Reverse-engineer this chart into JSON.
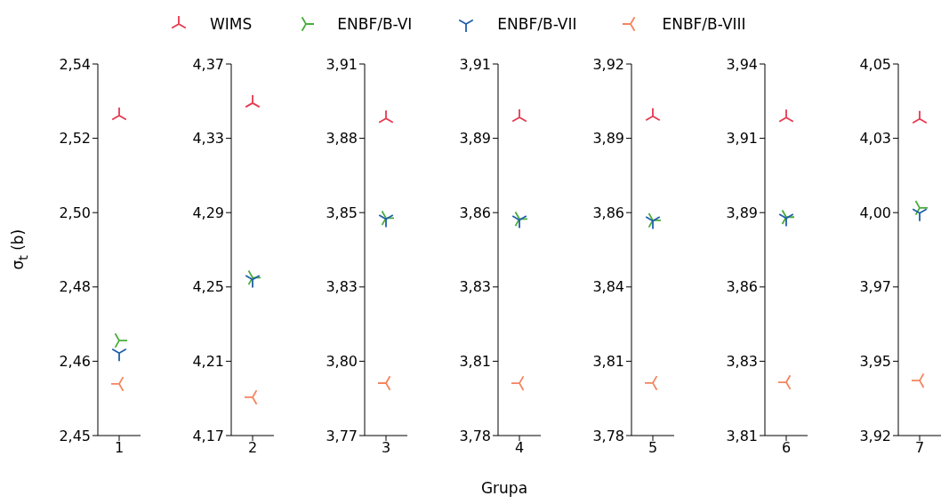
{
  "chart_data": [
    {
      "type": "scatter",
      "categories": [
        "1"
      ],
      "ylabel": "σ$_{t}$ (b)",
      "legend": "top",
      "grid": false,
      "ylim": [
        2.4455,
        2.5405
      ],
      "yticks": [
        {
          "value": 2.4455,
          "label": "2,45"
        },
        {
          "value": 2.4645,
          "label": "2,46"
        },
        {
          "value": 2.4835,
          "label": "2,48"
        },
        {
          "value": 2.5025,
          "label": "2,50"
        },
        {
          "value": 2.5215,
          "label": "2,52"
        },
        {
          "value": 2.5405,
          "label": "2,54"
        }
      ],
      "series": [
        {
          "name": "WIMS",
          "color": "#e8384f",
          "values": [
            2.5273
          ]
        },
        {
          "name": "ENBF/B-VI",
          "color": "#4aac3c",
          "values": [
            2.4698
          ]
        },
        {
          "name": "ENBF/B-VII",
          "color": "#2060a8",
          "values": [
            2.4666
          ]
        },
        {
          "name": "ENBF/B-VIII",
          "color": "#f4845f",
          "values": [
            2.4587
          ]
        }
      ]
    },
    {
      "type": "scatter",
      "categories": [
        "2"
      ],
      "grid": false,
      "ylim": [
        4.17,
        4.37
      ],
      "yticks": [
        {
          "value": 4.17,
          "label": "4,17"
        },
        {
          "value": 4.21,
          "label": "4,21"
        },
        {
          "value": 4.25,
          "label": "4,25"
        },
        {
          "value": 4.29,
          "label": "4,29"
        },
        {
          "value": 4.33,
          "label": "4,33"
        },
        {
          "value": 4.37,
          "label": "4,37"
        }
      ],
      "series": [
        {
          "color": "#e8384f",
          "values": [
            4.349
          ]
        },
        {
          "color": "#4aac3c",
          "values": [
            4.255
          ]
        },
        {
          "color": "#2060a8",
          "values": [
            4.254
          ]
        },
        {
          "color": "#f4845f",
          "values": [
            4.1906
          ]
        }
      ]
    },
    {
      "type": "scatter",
      "categories": [
        "3"
      ],
      "grid": false,
      "ylim": [
        3.772,
        3.908
      ],
      "yticks": [
        {
          "value": 3.772,
          "label": "3,77"
        },
        {
          "value": 3.7992,
          "label": "3,80"
        },
        {
          "value": 3.8264,
          "label": "3,83"
        },
        {
          "value": 3.8536,
          "label": "3,85"
        },
        {
          "value": 3.8808,
          "label": "3,88"
        },
        {
          "value": 3.908,
          "label": "3,91"
        }
      ],
      "series": [
        {
          "color": "#e8384f",
          "values": [
            3.8881
          ]
        },
        {
          "color": "#4aac3c",
          "values": [
            3.8516
          ]
        },
        {
          "color": "#2060a8",
          "values": [
            3.8512
          ]
        },
        {
          "color": "#f4845f",
          "values": [
            3.7912
          ]
        }
      ]
    },
    {
      "type": "scatter",
      "categories": [
        "4"
      ],
      "xlabel": "Grupa",
      "grid": false,
      "ylim": [
        3.779,
        3.914
      ],
      "yticks": [
        {
          "value": 3.779,
          "label": "3,78"
        },
        {
          "value": 3.806,
          "label": "3,81"
        },
        {
          "value": 3.833,
          "label": "3,83"
        },
        {
          "value": 3.86,
          "label": "3,86"
        },
        {
          "value": 3.887,
          "label": "3,89"
        },
        {
          "value": 3.914,
          "label": "3,91"
        }
      ],
      "series": [
        {
          "color": "#e8384f",
          "values": [
            3.8946
          ]
        },
        {
          "color": "#4aac3c",
          "values": [
            3.8577
          ]
        },
        {
          "color": "#2060a8",
          "values": [
            3.8573
          ]
        },
        {
          "color": "#f4845f",
          "values": [
            3.798
          ]
        }
      ]
    },
    {
      "type": "scatter",
      "categories": [
        "5"
      ],
      "grid": false,
      "ylim": [
        3.7795,
        3.9195
      ],
      "yticks": [
        {
          "value": 3.7795,
          "label": "3,78"
        },
        {
          "value": 3.8075,
          "label": "3,81"
        },
        {
          "value": 3.8355,
          "label": "3,84"
        },
        {
          "value": 3.8635,
          "label": "3,86"
        },
        {
          "value": 3.8915,
          "label": "3,89"
        },
        {
          "value": 3.9195,
          "label": "3,92"
        }
      ],
      "series": [
        {
          "color": "#e8384f",
          "values": [
            3.8998
          ]
        },
        {
          "color": "#4aac3c",
          "values": [
            3.8606
          ]
        },
        {
          "color": "#2060a8",
          "values": [
            3.8604
          ]
        },
        {
          "color": "#f4845f",
          "values": [
            3.7993
          ]
        }
      ]
    },
    {
      "type": "scatter",
      "categories": [
        "6"
      ],
      "grid": false,
      "ylim": [
        3.806,
        3.9385
      ],
      "yticks": [
        {
          "value": 3.806,
          "label": "3,81"
        },
        {
          "value": 3.8325,
          "label": "3,83"
        },
        {
          "value": 3.859,
          "label": "3,86"
        },
        {
          "value": 3.8855,
          "label": "3,89"
        },
        {
          "value": 3.912,
          "label": "3,91"
        },
        {
          "value": 3.9385,
          "label": "3,94"
        }
      ],
      "series": [
        {
          "color": "#e8384f",
          "values": [
            3.9194
          ]
        },
        {
          "color": "#4aac3c",
          "values": [
            3.8839
          ]
        },
        {
          "color": "#2060a8",
          "values": [
            3.8835
          ]
        },
        {
          "color": "#f4845f",
          "values": [
            3.825
          ]
        }
      ]
    },
    {
      "type": "scatter",
      "categories": [
        "7"
      ],
      "grid": false,
      "ylim": [
        3.9205,
        4.053
      ],
      "yticks": [
        {
          "value": 3.9205,
          "label": "3,92"
        },
        {
          "value": 3.947,
          "label": "3,95"
        },
        {
          "value": 3.9735,
          "label": "3,97"
        },
        {
          "value": 4.0,
          "label": "4,00"
        },
        {
          "value": 4.0265,
          "label": "4,03"
        },
        {
          "value": 4.053,
          "label": "4,05"
        }
      ],
      "series": [
        {
          "color": "#e8384f",
          "values": [
            4.0334
          ]
        },
        {
          "color": "#4aac3c",
          "values": [
            4.0017
          ]
        },
        {
          "color": "#2060a8",
          "values": [
            3.9998
          ]
        },
        {
          "color": "#f4845f",
          "values": [
            3.9401
          ]
        }
      ]
    }
  ]
}
